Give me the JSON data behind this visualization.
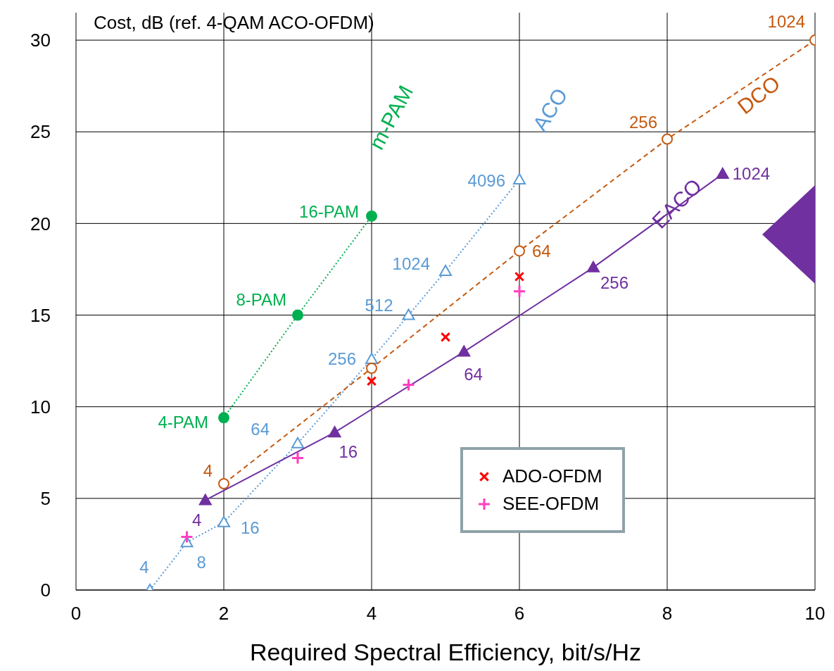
{
  "chart_data": {
    "type": "line",
    "title": "Cost, dB (ref. 4-QAM ACO-OFDM)",
    "xlabel": "Required Spectral Efficiency, bit/s/Hz",
    "xlim": [
      0,
      10
    ],
    "xticks": [
      0,
      2,
      4,
      6,
      8,
      10
    ],
    "ylim": [
      0,
      31.5
    ],
    "yticks": [
      0,
      5,
      10,
      15,
      20,
      25,
      30
    ],
    "grid": true,
    "legend": "bottom right",
    "series": [
      {
        "name": "m-PAM",
        "color": "#00b050",
        "marker": "circle",
        "line_style": "dotted",
        "x": [
          2,
          3,
          4
        ],
        "values": [
          9.4,
          15,
          20.4
        ]
      },
      {
        "name": "ACO",
        "color": "#5b9bd5",
        "marker": "triangle",
        "line_style": "dotted",
        "x": [
          1,
          1.5,
          2,
          3,
          4,
          4.5,
          5,
          6
        ],
        "values": [
          0,
          2.6,
          3.7,
          8,
          12.6,
          15,
          17.4,
          22.4
        ]
      },
      {
        "name": "DCO",
        "color": "#c55a11",
        "marker": "circle",
        "line_style": "dashed",
        "x": [
          2,
          4,
          6,
          8,
          10
        ],
        "values": [
          5.8,
          12.1,
          18.5,
          24.6,
          30
        ]
      },
      {
        "name": "EACO",
        "color": "#7030a0",
        "marker": "triangle",
        "line_style": "solid",
        "x": [
          1.75,
          3.5,
          5.25,
          7,
          8.75
        ],
        "values": [
          4.9,
          8.6,
          13,
          17.6,
          22.7
        ]
      },
      {
        "name": "ADO-OFDM",
        "type": "scatter",
        "color": "#ff0000",
        "marker": "cross",
        "x": [
          4,
          5,
          6
        ],
        "values": [
          11.4,
          13.8,
          17.1
        ]
      },
      {
        "name": "SEE-OFDM",
        "type": "scatter",
        "color": "#ff3fbf",
        "marker": "cross",
        "x": [
          1.5,
          3,
          4.5,
          6
        ],
        "values": [
          2.9,
          7.2,
          11.2,
          16.3
        ]
      }
    ],
    "annotations": [
      {
        "text": "4-PAM",
        "x": 2,
        "y": 9.4
      },
      {
        "text": "8-PAM",
        "x": 3,
        "y": 15
      },
      {
        "text": "16-PAM",
        "x": 4,
        "y": 20.4
      },
      {
        "text": "4",
        "x": 1,
        "y": 0
      },
      {
        "text": "8",
        "x": 1.5,
        "y": 2.6
      },
      {
        "text": "16",
        "x": 2,
        "y": 3.7
      },
      {
        "text": "64",
        "x": 3,
        "y": 8
      },
      {
        "text": "256",
        "x": 4,
        "y": 12.6
      },
      {
        "text": "512",
        "x": 4.5,
        "y": 15
      },
      {
        "text": "1024",
        "x": 5,
        "y": 17.4
      },
      {
        "text": "4096",
        "x": 6,
        "y": 22.4
      },
      {
        "text": "4",
        "x": 2,
        "y": 5.8
      },
      {
        "text": "64",
        "x": 6,
        "y": 18.5
      },
      {
        "text": "256",
        "x": 8,
        "y": 24.6
      },
      {
        "text": "1024",
        "x": 10,
        "y": 30
      },
      {
        "text": "4",
        "x": 1.75,
        "y": 4.9
      },
      {
        "text": "16",
        "x": 3.5,
        "y": 8.6
      },
      {
        "text": "64",
        "x": 5.25,
        "y": 13
      },
      {
        "text": "256",
        "x": 7,
        "y": 17.6
      },
      {
        "text": "1024",
        "x": 8.75,
        "y": 22.7
      }
    ]
  }
}
